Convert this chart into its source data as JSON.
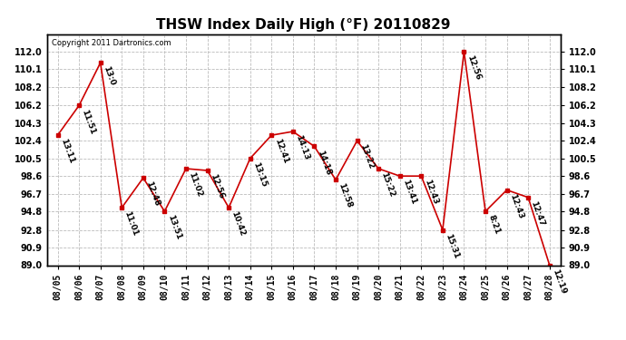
{
  "title": "THSW Index Daily High (°F) 20110829",
  "copyright": "Copyright 2011 Dartronics.com",
  "dates": [
    "08/05",
    "08/06",
    "08/07",
    "08/08",
    "08/09",
    "08/10",
    "08/11",
    "08/12",
    "08/13",
    "08/14",
    "08/15",
    "08/16",
    "08/17",
    "08/18",
    "08/19",
    "08/20",
    "08/21",
    "08/22",
    "08/23",
    "08/24",
    "08/25",
    "08/26",
    "08/27",
    "08/28"
  ],
  "values": [
    103.0,
    106.2,
    110.8,
    95.2,
    98.4,
    94.8,
    99.4,
    99.2,
    95.2,
    100.5,
    103.0,
    103.4,
    101.8,
    98.2,
    102.4,
    99.4,
    98.6,
    98.6,
    92.8,
    112.0,
    94.8,
    97.1,
    96.3,
    89.0
  ],
  "labels": [
    "13:11",
    "11:51",
    "13:0",
    "11:01",
    "12:48",
    "13:51",
    "11:02",
    "12:56",
    "10:42",
    "13:15",
    "12:41",
    "14:13",
    "14:18",
    "12:58",
    "13:22",
    "15:22",
    "13:41",
    "12:43",
    "15:31",
    "12:56",
    "8:21",
    "12:43",
    "12:47",
    "12:19"
  ],
  "line_color": "#cc0000",
  "marker_color": "#cc0000",
  "bg_color": "#ffffff",
  "grid_color": "#bbbbbb",
  "ylim_min": 89.0,
  "ylim_max": 113.9,
  "yticks": [
    89.0,
    90.9,
    92.8,
    94.8,
    96.7,
    98.6,
    100.5,
    102.4,
    104.3,
    106.2,
    108.2,
    110.1,
    112.0
  ],
  "label_fontsize": 6.5,
  "title_fontsize": 11
}
